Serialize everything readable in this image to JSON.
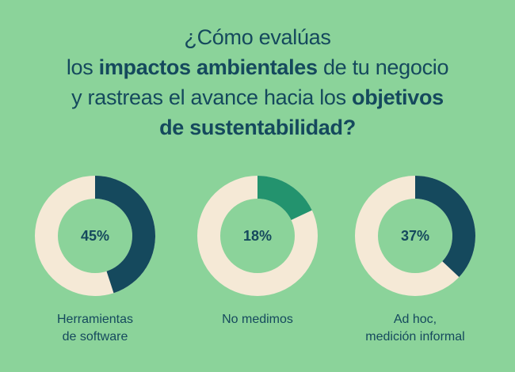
{
  "title": {
    "line1": "¿Cómo evalúas",
    "line2_pre": "los ",
    "line2_bold": "impactos ambientales",
    "line2_post": " de tu negocio",
    "line3_pre": "y rastreas el avance hacia los ",
    "line3_bold": "objetivos",
    "line4_bold": "de sustentabilidad?"
  },
  "colors": {
    "background": "#8bd39a",
    "dark": "#15495d",
    "green": "#23936e",
    "cream": "#f5e9d6"
  },
  "chart_data": {
    "type": "pie",
    "variant": "donut",
    "title": "¿Cómo evalúas los impactos ambientales de tu negocio y rastreas el avance hacia los objetivos de sustentabilidad?",
    "series": [
      {
        "name": "Herramientas de software",
        "label_lines": [
          "Herramientas",
          "de software"
        ],
        "value": 45,
        "value_label": "45%",
        "color": "#15495d"
      },
      {
        "name": "No medimos",
        "label_lines": [
          "No medimos"
        ],
        "value": 18,
        "value_label": "18%",
        "color": "#23936e"
      },
      {
        "name": "Ad hoc, medición informal",
        "label_lines": [
          "Ad hoc,",
          "medición informal"
        ],
        "value": 37,
        "value_label": "37%",
        "color": "#15495d"
      }
    ],
    "remainder_color": "#f5e9d6"
  }
}
